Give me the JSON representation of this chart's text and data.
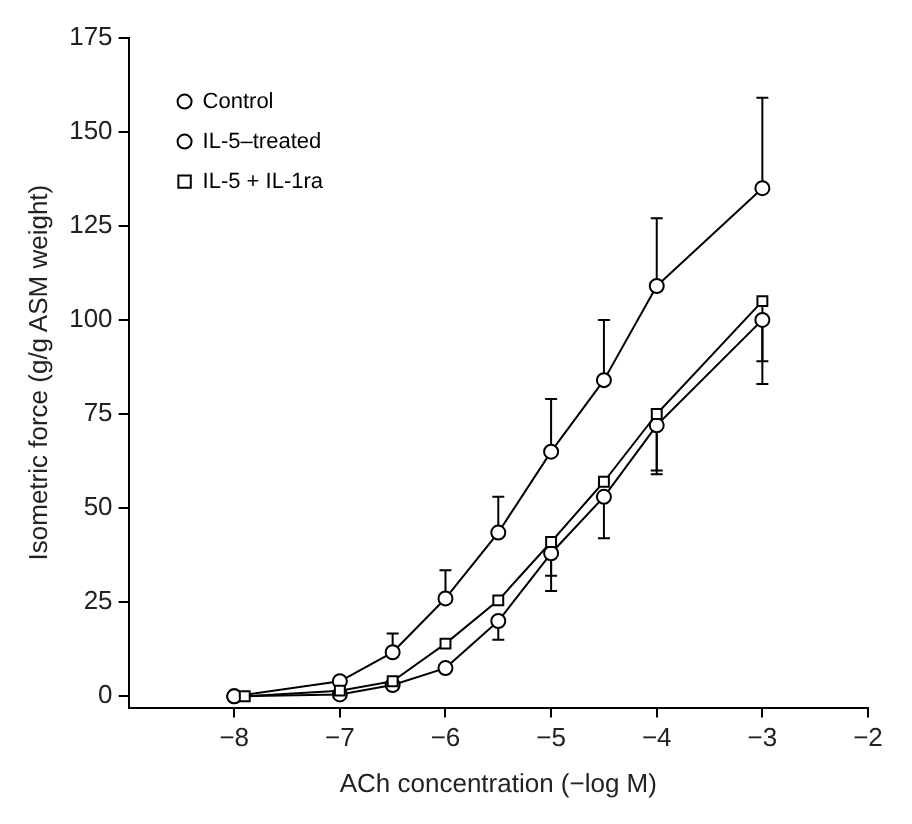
{
  "chart_data": {
    "type": "line",
    "xlabel": "ACh concentration (−log M)",
    "ylabel": "Isometric force (g/g ASM weight)",
    "x": [
      -8,
      -7,
      -6.5,
      -6,
      -5.5,
      -5,
      -4.5,
      -4,
      -3
    ],
    "xlim": [
      -9,
      -2
    ],
    "xticks": [
      -8,
      -7,
      -6,
      -5,
      -4,
      -3,
      -2
    ],
    "ylim": [
      -3,
      175
    ],
    "yticks": [
      0,
      25,
      50,
      75,
      100,
      125,
      150,
      175
    ],
    "grid": false,
    "legend": "top left",
    "line_style": "solid",
    "series": [
      {
        "name": "Control",
        "color": "#000000",
        "marker": "circle",
        "values": [
          0,
          0.5,
          3,
          7.5,
          20,
          38,
          53,
          72,
          100
        ],
        "errors": [
          null,
          null,
          null,
          null,
          [
            15,
            20
          ],
          [
            32,
            38
          ],
          [
            42,
            53
          ],
          [
            59,
            72
          ],
          [
            83,
            100
          ]
        ]
      },
      {
        "name": "IL-5–treated",
        "color": "#000000",
        "marker": "circle",
        "values": [
          0,
          4,
          11.7,
          26,
          43.5,
          65,
          84,
          109,
          135
        ],
        "errors": [
          null,
          null,
          [
            11.7,
            16.7
          ],
          [
            26,
            33.5
          ],
          [
            43.5,
            53
          ],
          [
            65,
            79
          ],
          [
            84,
            100
          ],
          [
            109,
            127
          ],
          [
            135,
            159
          ]
        ]
      },
      {
        "name": "IL-5 + IL-1ra",
        "color": "#000000",
        "marker": "square",
        "x": [
          -7.9,
          -7,
          -6.5,
          -6,
          -5.5,
          -5,
          -4.5,
          -4,
          -3
        ],
        "values": [
          0,
          1.5,
          4,
          14,
          25.5,
          41,
          57,
          75,
          105
        ],
        "errors": [
          null,
          null,
          null,
          null,
          null,
          [
            28,
            41
          ],
          null,
          [
            60,
            75
          ],
          [
            89,
            105
          ]
        ]
      }
    ]
  }
}
